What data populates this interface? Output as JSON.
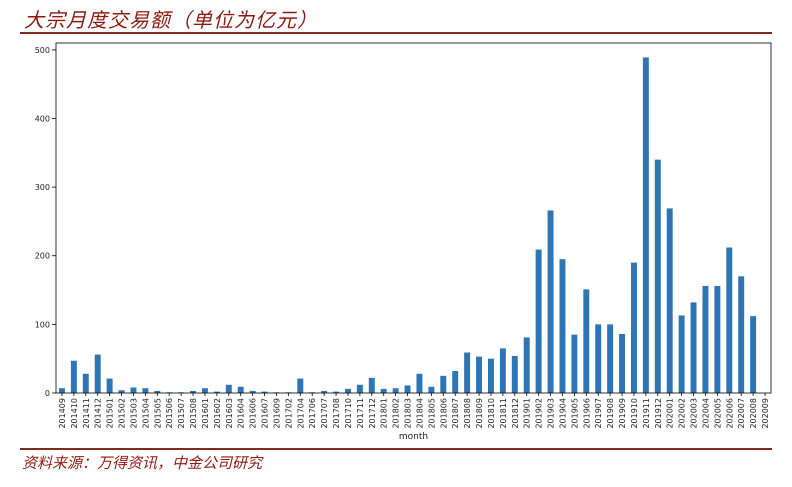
{
  "header": {
    "title": "大宗月度交易额（单位为亿元）"
  },
  "footer": {
    "source": "资料来源：万得资讯，中金公司研究"
  },
  "chart_data": {
    "type": "bar",
    "xlabel": "month",
    "ylabel": "",
    "ylim": [
      0,
      510
    ],
    "yticks": [
      0,
      100,
      200,
      300,
      400,
      500
    ],
    "bar_color": "#2e75b6",
    "grid": false,
    "categories": [
      "201409",
      "201410",
      "201411",
      "201412",
      "201501",
      "201502",
      "201503",
      "201504",
      "201505",
      "201506",
      "201507",
      "201508",
      "201601",
      "201602",
      "201603",
      "201604",
      "201606",
      "201607",
      "201609",
      "201702",
      "201704",
      "201706",
      "201707",
      "201708",
      "201710",
      "201711",
      "201712",
      "201801",
      "201802",
      "201803",
      "201804",
      "201805",
      "201806",
      "201807",
      "201808",
      "201809",
      "201810",
      "201811",
      "201812",
      "201901",
      "201902",
      "201903",
      "201904",
      "201905",
      "201906",
      "201907",
      "201908",
      "201909",
      "201910",
      "201911",
      "201912",
      "202001",
      "202002",
      "202003",
      "202004",
      "202005",
      "202006",
      "202007",
      "202008",
      "202009"
    ],
    "values": [
      7,
      47,
      28,
      56,
      21,
      4,
      8,
      7,
      3,
      1,
      1,
      3,
      7,
      2,
      12,
      9,
      3,
      2,
      1,
      1,
      21,
      1,
      3,
      2,
      6,
      12,
      22,
      6,
      7,
      11,
      28,
      9,
      25,
      32,
      59,
      53,
      50,
      65,
      54,
      81,
      209,
      266,
      195,
      85,
      151,
      100,
      100,
      86,
      190,
      489,
      340,
      269,
      113,
      132,
      156,
      156,
      212,
      170,
      112,
      0
    ]
  }
}
